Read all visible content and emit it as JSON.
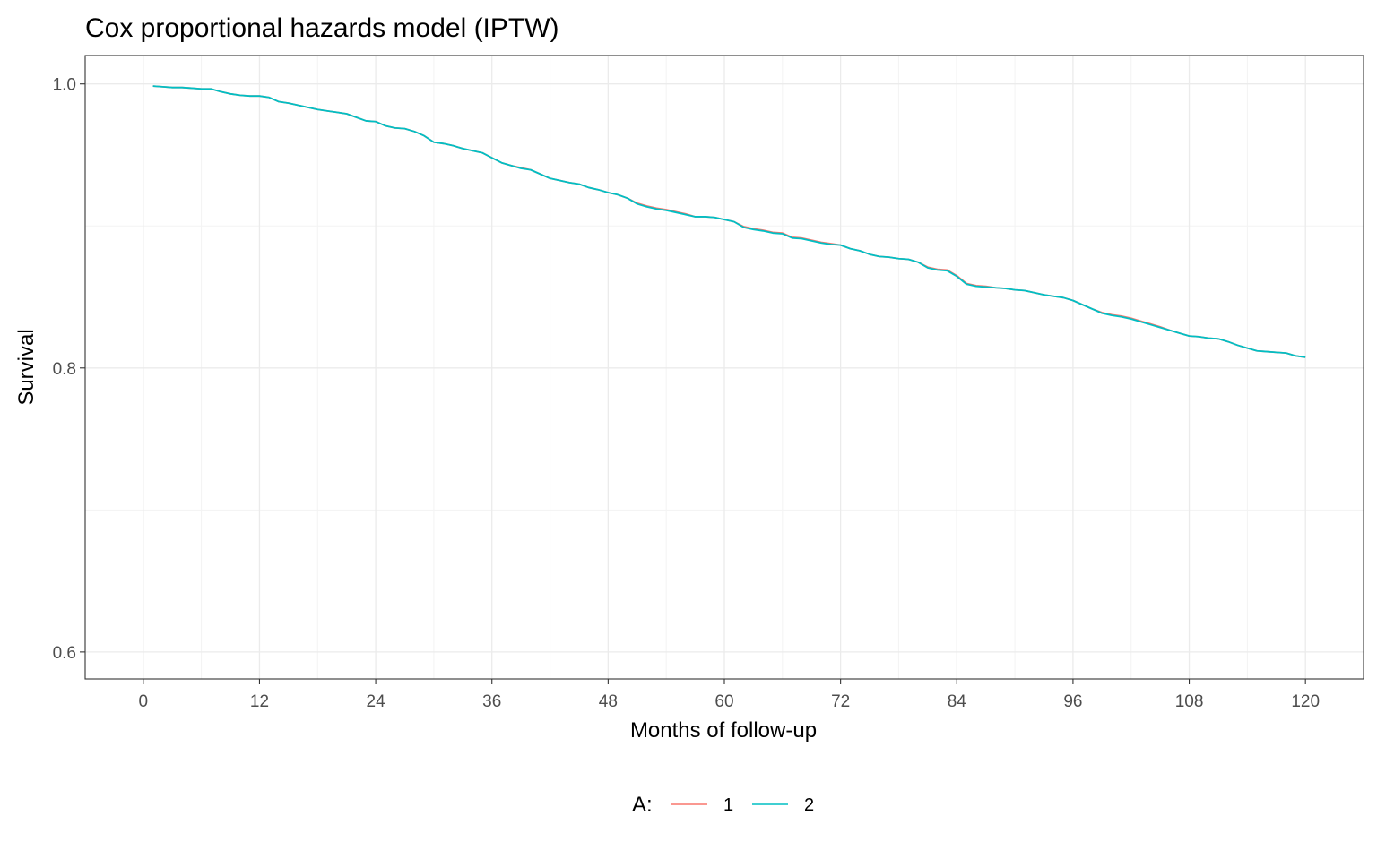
{
  "chart_data": {
    "type": "line",
    "title": "Cox proportional hazards model (IPTW)",
    "xlabel": "Months of follow-up",
    "ylabel": "Survival",
    "xlim": [
      -6,
      126
    ],
    "ylim": [
      0.581,
      1.02
    ],
    "x_ticks": [
      0,
      12,
      24,
      36,
      48,
      60,
      72,
      84,
      96,
      108,
      120
    ],
    "x_tick_labels": [
      "0",
      "12",
      "24",
      "36",
      "48",
      "60",
      "72",
      "84",
      "96",
      "108",
      "120"
    ],
    "y_ticks": [
      0.6,
      0.8,
      1.0
    ],
    "y_tick_labels": [
      "0.6",
      "0.8",
      "1.0"
    ],
    "y_minor_ticks": [
      0.7,
      0.9
    ],
    "grid": true,
    "legend": {
      "title": "A:",
      "position": "bottom"
    },
    "series": [
      {
        "name": "1",
        "color": "#F8766D",
        "x": [
          1,
          2,
          3,
          4,
          5,
          6,
          7,
          8,
          9,
          10,
          11,
          12,
          13,
          14,
          15,
          16,
          17,
          18,
          19,
          20,
          21,
          22,
          23,
          24,
          25,
          26,
          27,
          28,
          29,
          30,
          31,
          32,
          33,
          34,
          35,
          36,
          37,
          38,
          39,
          40,
          41,
          42,
          43,
          44,
          45,
          46,
          47,
          48,
          49,
          50,
          51,
          52,
          53,
          54,
          55,
          56,
          57,
          58,
          59,
          60,
          61,
          62,
          63,
          64,
          65,
          66,
          67,
          68,
          69,
          70,
          71,
          72,
          73,
          74,
          75,
          76,
          77,
          78,
          79,
          80,
          81,
          82,
          83,
          84,
          85,
          86,
          87,
          88,
          89,
          90,
          91,
          92,
          93,
          94,
          95,
          96,
          97,
          98,
          99,
          100,
          101,
          102,
          103,
          104,
          105,
          106,
          107,
          108,
          109,
          110,
          111,
          112,
          113,
          114,
          115,
          116,
          117,
          118,
          119,
          120
        ],
        "y": [
          0.9985,
          0.998,
          0.9975,
          0.9975,
          0.997,
          0.9965,
          0.9965,
          0.9945,
          0.993,
          0.992,
          0.9915,
          0.9915,
          0.9905,
          0.9875,
          0.9865,
          0.985,
          0.9835,
          0.982,
          0.981,
          0.98,
          0.979,
          0.9765,
          0.974,
          0.9735,
          0.9705,
          0.969,
          0.9685,
          0.9665,
          0.9635,
          0.959,
          0.958,
          0.9565,
          0.9545,
          0.953,
          0.9515,
          0.948,
          0.9445,
          0.9425,
          0.941,
          0.9395,
          0.9365,
          0.9335,
          0.932,
          0.9305,
          0.9295,
          0.927,
          0.9255,
          0.9235,
          0.922,
          0.9195,
          0.916,
          0.914,
          0.9125,
          0.9115,
          0.91,
          0.9085,
          0.9065,
          0.9065,
          0.906,
          0.9045,
          0.903,
          0.8995,
          0.898,
          0.897,
          0.8955,
          0.895,
          0.892,
          0.8915,
          0.89,
          0.8885,
          0.8875,
          0.8865,
          0.884,
          0.8825,
          0.88,
          0.8785,
          0.878,
          0.877,
          0.8765,
          0.8745,
          0.871,
          0.8695,
          0.869,
          0.865,
          0.8595,
          0.858,
          0.8575,
          0.8565,
          0.856,
          0.855,
          0.8545,
          0.853,
          0.8515,
          0.8505,
          0.8495,
          0.8475,
          0.8445,
          0.8415,
          0.839,
          0.8375,
          0.8365,
          0.835,
          0.833,
          0.831,
          0.829,
          0.8265,
          0.8245,
          0.8225,
          0.822,
          0.821,
          0.8205,
          0.8185,
          0.816,
          0.814,
          0.812,
          0.8115,
          0.811,
          0.8105,
          0.8085,
          0.8075
        ]
      },
      {
        "name": "2",
        "color": "#00BFC4",
        "x": [
          1,
          2,
          3,
          4,
          5,
          6,
          7,
          8,
          9,
          10,
          11,
          12,
          13,
          14,
          15,
          16,
          17,
          18,
          19,
          20,
          21,
          22,
          23,
          24,
          25,
          26,
          27,
          28,
          29,
          30,
          31,
          32,
          33,
          34,
          35,
          36,
          37,
          38,
          39,
          40,
          41,
          42,
          43,
          44,
          45,
          46,
          47,
          48,
          49,
          50,
          51,
          52,
          53,
          54,
          55,
          56,
          57,
          58,
          59,
          60,
          61,
          62,
          63,
          64,
          65,
          66,
          67,
          68,
          69,
          70,
          71,
          72,
          73,
          74,
          75,
          76,
          77,
          78,
          79,
          80,
          81,
          82,
          83,
          84,
          85,
          86,
          87,
          88,
          89,
          90,
          91,
          92,
          93,
          94,
          95,
          96,
          97,
          98,
          99,
          100,
          101,
          102,
          103,
          104,
          105,
          106,
          107,
          108,
          109,
          110,
          111,
          112,
          113,
          114,
          115,
          116,
          117,
          118,
          119,
          120
        ],
        "y": [
          0.9985,
          0.998,
          0.9975,
          0.9975,
          0.997,
          0.9965,
          0.9965,
          0.9945,
          0.993,
          0.992,
          0.9915,
          0.9915,
          0.9905,
          0.9875,
          0.9865,
          0.985,
          0.9835,
          0.982,
          0.981,
          0.98,
          0.979,
          0.9765,
          0.974,
          0.9735,
          0.9705,
          0.969,
          0.9685,
          0.9665,
          0.9635,
          0.959,
          0.958,
          0.9565,
          0.9545,
          0.953,
          0.9515,
          0.948,
          0.9445,
          0.9425,
          0.9405,
          0.9395,
          0.9365,
          0.9335,
          0.932,
          0.9305,
          0.9295,
          0.927,
          0.9255,
          0.9235,
          0.922,
          0.9195,
          0.9155,
          0.9135,
          0.912,
          0.911,
          0.9095,
          0.908,
          0.9065,
          0.9065,
          0.906,
          0.9045,
          0.903,
          0.899,
          0.8975,
          0.8965,
          0.895,
          0.8945,
          0.8915,
          0.891,
          0.8895,
          0.888,
          0.887,
          0.8865,
          0.884,
          0.8825,
          0.88,
          0.8785,
          0.878,
          0.877,
          0.8765,
          0.8745,
          0.8705,
          0.869,
          0.8685,
          0.8645,
          0.859,
          0.8575,
          0.857,
          0.8565,
          0.856,
          0.855,
          0.8545,
          0.853,
          0.8515,
          0.8505,
          0.8495,
          0.8475,
          0.8445,
          0.8415,
          0.8385,
          0.837,
          0.836,
          0.8345,
          0.8325,
          0.8305,
          0.8285,
          0.8265,
          0.8245,
          0.8225,
          0.822,
          0.821,
          0.8205,
          0.8185,
          0.816,
          0.814,
          0.812,
          0.8115,
          0.811,
          0.8105,
          0.8085,
          0.8075
        ]
      }
    ]
  }
}
